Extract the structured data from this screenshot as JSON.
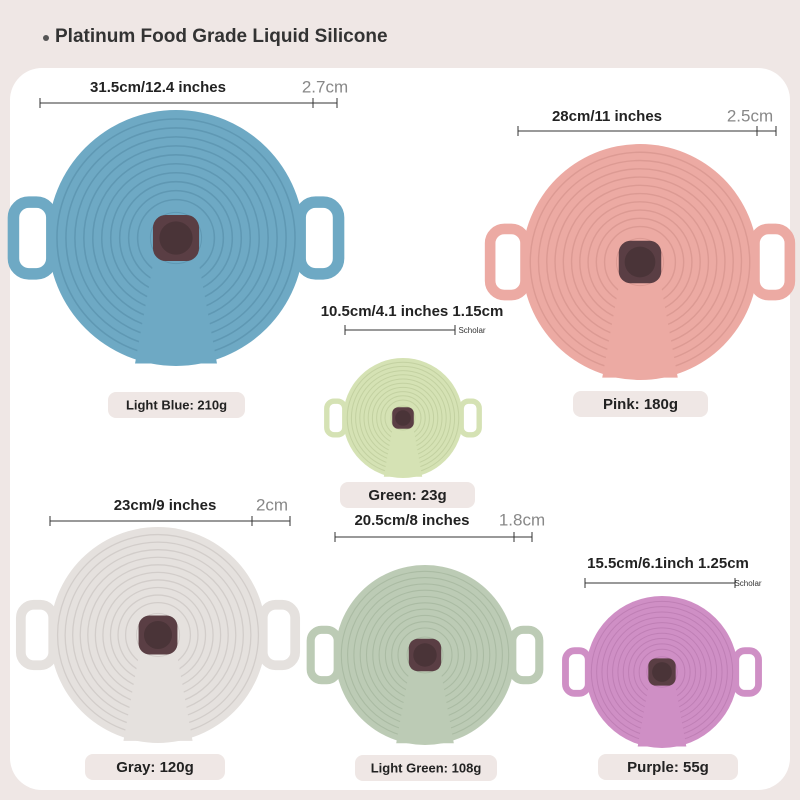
{
  "header": {
    "title": "Platinum Food Grade Liquid Silicone"
  },
  "lids": [
    {
      "size": "31.5cm/12.4 inches",
      "thickness": "2.7cm",
      "name": "Light Blue: 210g"
    },
    {
      "size": "28cm/11 inches",
      "thickness": "2.5cm",
      "name": "Pink: 180g"
    },
    {
      "size": "10.5cm/4.1 inches 1.15cm",
      "note": "Scholar",
      "name": "Green: 23g"
    },
    {
      "size": "23cm/9 inches",
      "thickness": "2cm",
      "name": "Gray: 120g"
    },
    {
      "size": "20.5cm/8 inches",
      "thickness": "1.8cm",
      "name": "Light Green: 108g"
    },
    {
      "size": "15.5cm/6.1inch 1.25cm",
      "note": "Scholar",
      "name": "Purple: 55g"
    }
  ]
}
